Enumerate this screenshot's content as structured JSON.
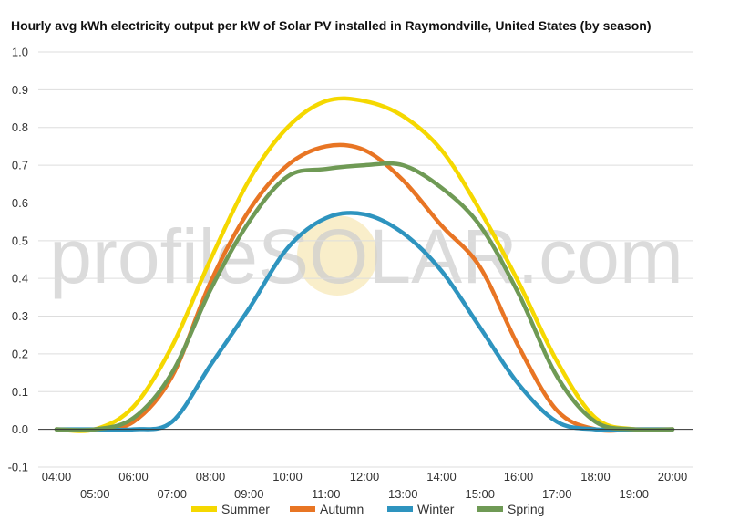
{
  "chart_data": {
    "type": "line",
    "title": "Hourly avg kWh electricity output per kW of Solar PV installed in Raymondville, United States (by season)",
    "xlabel": "",
    "ylabel": "",
    "categories": [
      "04:00",
      "05:00",
      "06:00",
      "07:00",
      "08:00",
      "09:00",
      "10:00",
      "11:00",
      "12:00",
      "13:00",
      "14:00",
      "15:00",
      "16:00",
      "17:00",
      "18:00",
      "19:00",
      "20:00"
    ],
    "y_ticks": [
      "-0.1",
      "0.0",
      "0.1",
      "0.2",
      "0.3",
      "0.4",
      "0.5",
      "0.6",
      "0.7",
      "0.8",
      "0.9",
      "1.0"
    ],
    "ylim": [
      -0.1,
      1.0
    ],
    "grid": true,
    "legend_position": "bottom",
    "watermark": "profileSOLAR.com",
    "series": [
      {
        "name": "Summer",
        "color": "#f5d800",
        "values": [
          0.0,
          0.0,
          0.06,
          0.22,
          0.45,
          0.66,
          0.8,
          0.87,
          0.87,
          0.83,
          0.74,
          0.58,
          0.39,
          0.18,
          0.03,
          0.0,
          0.0
        ]
      },
      {
        "name": "Autumn",
        "color": "#e87524",
        "values": [
          0.0,
          0.0,
          0.02,
          0.14,
          0.39,
          0.58,
          0.7,
          0.75,
          0.74,
          0.66,
          0.54,
          0.43,
          0.22,
          0.05,
          0.0,
          0.0,
          0.0
        ]
      },
      {
        "name": "Winter",
        "color": "#2e94bf",
        "values": [
          0.0,
          0.0,
          0.0,
          0.02,
          0.17,
          0.32,
          0.48,
          0.56,
          0.57,
          0.52,
          0.42,
          0.27,
          0.12,
          0.02,
          0.0,
          0.0,
          0.0
        ]
      },
      {
        "name": "Spring",
        "color": "#6f9a55",
        "values": [
          0.0,
          0.0,
          0.03,
          0.15,
          0.37,
          0.55,
          0.67,
          0.69,
          0.7,
          0.7,
          0.64,
          0.54,
          0.36,
          0.14,
          0.02,
          0.0,
          0.0
        ]
      }
    ]
  }
}
